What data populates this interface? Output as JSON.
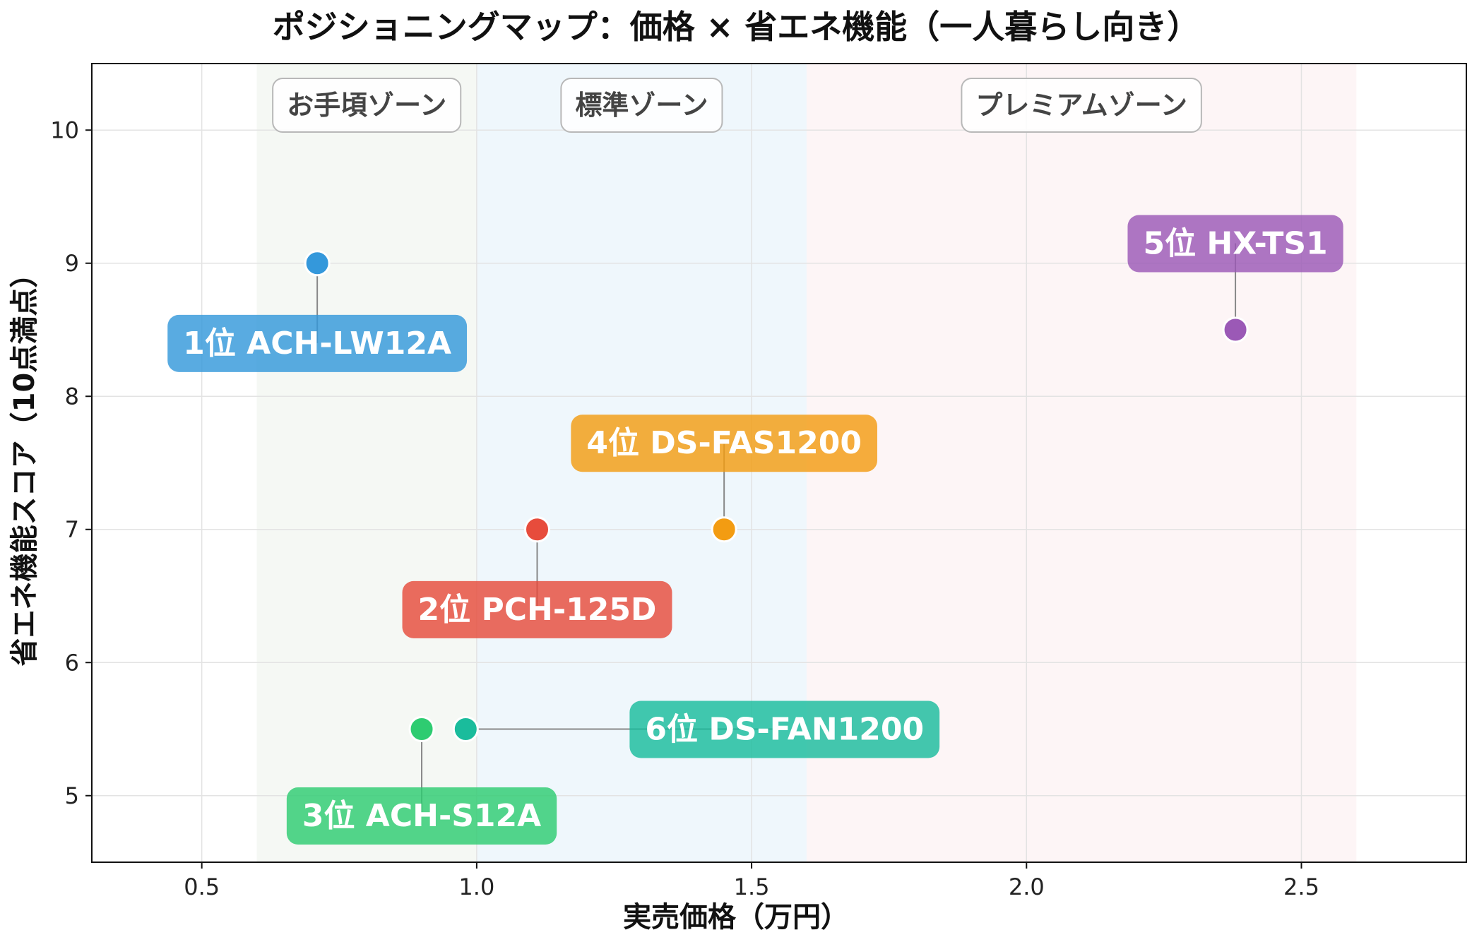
{
  "chart_data": {
    "type": "scatter",
    "title": "ポジショニングマップ：価格 × 省エネ機能（一人暮らし向き）",
    "xlabel": "実売価格（万円）",
    "ylabel": "省エネ機能スコア（10点満点）",
    "xlim": [
      0.3,
      2.8
    ],
    "ylim": [
      4.5,
      10.5
    ],
    "xticks": [
      0.5,
      1.0,
      1.5,
      2.0,
      2.5
    ],
    "xtick_labels": [
      "0.5",
      "1.0",
      "1.5",
      "2.0",
      "2.5"
    ],
    "yticks": [
      5,
      6,
      7,
      8,
      9,
      10
    ],
    "ytick_labels": [
      "5",
      "6",
      "7",
      "8",
      "9",
      "10"
    ],
    "grid": true,
    "zones": [
      {
        "label": "お手頃ゾーン",
        "x_range": [
          0.6,
          1.0
        ],
        "color": "#e8efe6"
      },
      {
        "label": "標準ゾーン",
        "x_range": [
          1.0,
          1.6
        ],
        "color": "#dbeef9"
      },
      {
        "label": "プレミアムゾーン",
        "x_range": [
          1.6,
          2.6
        ],
        "color": "#fbe9ea"
      }
    ],
    "points": [
      {
        "label": "1位 ACH-LW12A",
        "x": 0.71,
        "y": 9.0,
        "color": "#3498db",
        "label_y": 8.4
      },
      {
        "label": "2位 PCH-125D",
        "x": 1.11,
        "y": 7.0,
        "color": "#e74c3c",
        "label_y": 6.4
      },
      {
        "label": "3位 ACH-S12A",
        "x": 0.9,
        "y": 5.5,
        "color": "#2ecc71",
        "label_y": 4.85
      },
      {
        "label": "4位 DS-FAS1200",
        "x": 1.45,
        "y": 7.0,
        "color": "#f39c12",
        "label_y": 7.65
      },
      {
        "label": "5位 HX-TS1",
        "x": 2.38,
        "y": 8.5,
        "color": "#9b59b6",
        "label_y": 9.15
      },
      {
        "label": "6位 DS-FAN1200",
        "x": 0.98,
        "y": 5.5,
        "color": "#1abc9c",
        "label_x": 1.56,
        "label_y": 5.5
      }
    ]
  }
}
